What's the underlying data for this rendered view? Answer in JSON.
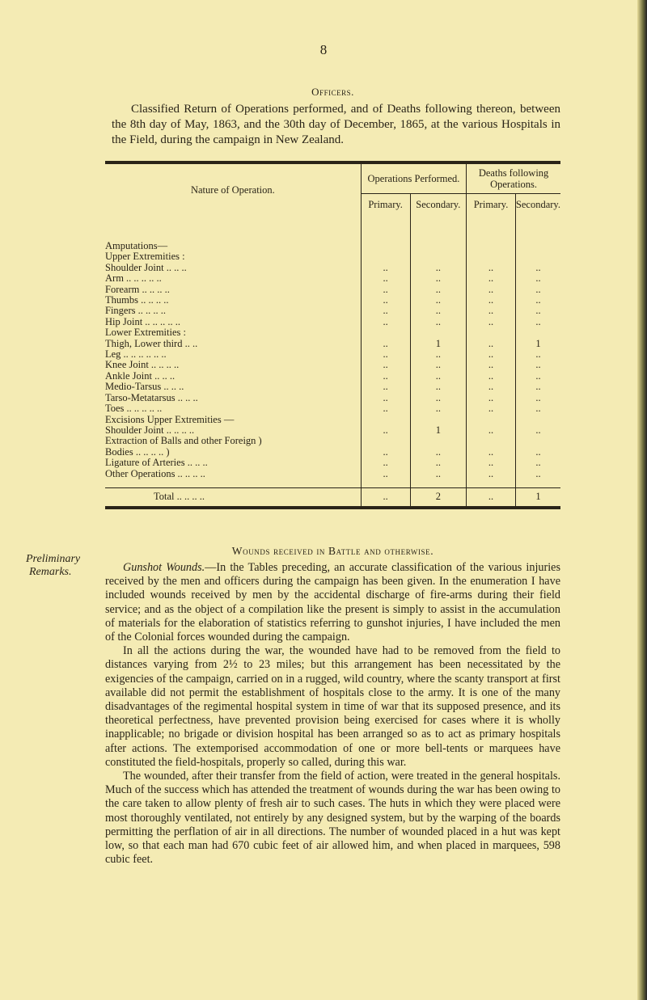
{
  "page_number": "8",
  "section_title": "Officers.",
  "intro": "Classified Return of Operations performed, and of Deaths following thereon, between the 8th day of May, 1863, and the 30th day of December, 1865, at the various Hospitals in the Field, during the campaign in New Zealand.",
  "table": {
    "col_nature": "Nature of Operation.",
    "col_ops": "Operations Performed.",
    "col_deaths": "Deaths following Operations.",
    "sub_primary": "Primary.",
    "sub_secondary": "Secondary.",
    "rows": [
      {
        "label": "Amputations—",
        "indent": 0,
        "heading": true
      },
      {
        "label": "Upper Extremities :",
        "indent": 1,
        "heading": true
      },
      {
        "label": "Shoulder Joint  ..  ..  ..",
        "indent": 2,
        "v": [
          "..",
          "..",
          "..",
          ".."
        ]
      },
      {
        "label": "Arm  ..  ..  ..  ..  ..",
        "indent": 2,
        "v": [
          "..",
          "..",
          "..",
          ".."
        ]
      },
      {
        "label": "Forearm  ..  ..  ..  ..",
        "indent": 2,
        "v": [
          "..",
          "..",
          "..",
          ".."
        ]
      },
      {
        "label": "Thumbs  ..  ..  ..  ..",
        "indent": 2,
        "v": [
          "..",
          "..",
          "..",
          ".."
        ]
      },
      {
        "label": "Fingers  ..  ..  ..  ..",
        "indent": 2,
        "v": [
          "..",
          "..",
          "..",
          ".."
        ]
      },
      {
        "label": "Hip Joint  ..  ..  ..  ..  ..",
        "indent": 1,
        "v": [
          "..",
          "..",
          "..",
          ".."
        ]
      },
      {
        "label": "Lower Extremities :",
        "indent": 1,
        "heading": true
      },
      {
        "label": "Thigh, Lower third  ..  ..",
        "indent": 2,
        "v": [
          "..",
          "1",
          "..",
          "1"
        ]
      },
      {
        "label": "Leg ..  ..  ..  ..  ..  ..",
        "indent": 2,
        "v": [
          "..",
          "..",
          "..",
          ".."
        ]
      },
      {
        "label": "Knee Joint ..  ..  ..  ..",
        "indent": 2,
        "v": [
          "..",
          "..",
          "..",
          ".."
        ]
      },
      {
        "label": "Ankle Joint  ..  ..  ..",
        "indent": 2,
        "v": [
          "..",
          "..",
          "..",
          ".."
        ]
      },
      {
        "label": "Medio-Tarsus  ..  ..  ..",
        "indent": 2,
        "v": [
          "..",
          "..",
          "..",
          ".."
        ]
      },
      {
        "label": "Tarso-Metatarsus ..  ..  ..",
        "indent": 2,
        "v": [
          "..",
          "..",
          "..",
          ".."
        ]
      },
      {
        "label": "Toes  ..  ..  ..  ..  ..",
        "indent": 2,
        "v": [
          "..",
          "..",
          "..",
          ".."
        ]
      },
      {
        "label": "Excisions Upper Extremities —",
        "indent": 0,
        "heading": true
      },
      {
        "label": "Shoulder Joint ..  ..  ..  ..",
        "indent": 1,
        "v": [
          "..",
          "1",
          "..",
          ".."
        ]
      },
      {
        "label": "Extraction of Balls and other Foreign )",
        "indent": 0,
        "heading": true
      },
      {
        "label": "Bodies  ..  ..  ..  ..  )",
        "indent": 1,
        "v": [
          "..",
          "..",
          "..",
          ".."
        ]
      },
      {
        "label": "Ligature of Arteries  ..  ..  ..",
        "indent": 0,
        "v": [
          "..",
          "..",
          "..",
          ".."
        ]
      },
      {
        "label": "Other Operations ..  ..  ..  ..",
        "indent": 0,
        "v": [
          "..",
          "..",
          "..",
          ".."
        ]
      }
    ],
    "total": {
      "label": "Total  ..  ..  ..  ..",
      "v": [
        "..",
        "2",
        "..",
        "1"
      ]
    }
  },
  "wounds_heading": "Wounds received in Battle and otherwise.",
  "margin_note": [
    "Preliminary",
    "Remarks."
  ],
  "paragraphs": [
    {
      "lead": "Gunshot Wounds.",
      "text": "—In the Tables preceding, an accurate classification of the various injuries received by the men and officers during the campaign has been given. In the enumeration I have included wounds received by men by the accidental discharge of fire-arms during their field service; and as the object of a compilation like the present is simply to assist in the accumulation of materials for the elaboration of statistics referring to gunshot injuries, I have included the men of the Colonial forces wounded during the campaign."
    },
    {
      "lead": "",
      "text": "In all the actions during the war, the wounded have had to be removed from the field to distances varying from 2½ to 23 miles; but this arrangement has been necessitated by the exigencies of the campaign, carried on in a rugged, wild country, where the scanty transport at first available did not permit the establishment of hospitals close to the army. It is one of the many disadvantages of the regimental hospital system in time of war that its supposed presence, and its theoretical perfectness, have prevented provision being exercised for cases where it is wholly inapplicable; no brigade or division hospital has been arranged so as to act as primary hospitals after actions. The extemporised accommodation of one or more bell-tents or marquees have constituted the field-hospitals, properly so called, during this war."
    },
    {
      "lead": "",
      "text": "The wounded, after their transfer from the field of action, were treated in the general hospitals. Much of the success which has attended the treatment of wounds during the war has been owing to the care taken to allow plenty of fresh air to such cases. The huts in which they were placed were most thoroughly ventilated, not entirely by any designed system, but by the warping of the boards permitting the perflation of air in all directions. The number of wounded placed in a hut was kept low, so that each man had 670 cubic feet of air allowed him, and when placed in marquees, 598 cubic feet."
    }
  ]
}
